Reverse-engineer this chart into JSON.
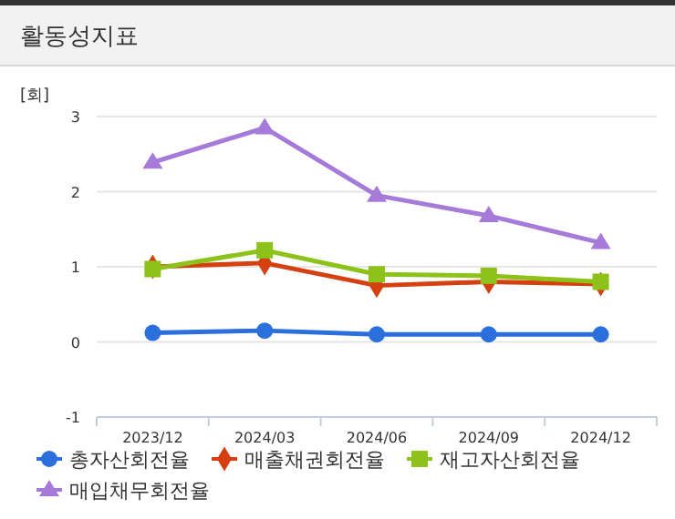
{
  "chart_data": {
    "type": "line",
    "title": "활동성지표",
    "ylabel": "[회]",
    "categories": [
      "2023/12",
      "2024/03",
      "2024/06",
      "2024/09",
      "2024/12"
    ],
    "ylim": [
      -1,
      3
    ],
    "yticks": [
      -1,
      0,
      1,
      2,
      3
    ],
    "grid": "y",
    "legend": "bottom",
    "series": [
      {
        "name": "총자산회전율",
        "color": "#2a6fdb",
        "marker": "circle",
        "values": [
          0.12,
          0.15,
          0.1,
          0.1,
          0.1
        ]
      },
      {
        "name": "매출채권회전율",
        "color": "#d4400f",
        "marker": "diamond",
        "values": [
          1.0,
          1.05,
          0.75,
          0.8,
          0.77
        ]
      },
      {
        "name": "재고자산회전율",
        "color": "#8cc21a",
        "marker": "square",
        "values": [
          0.97,
          1.22,
          0.9,
          0.88,
          0.8
        ]
      },
      {
        "name": "매입채무회전율",
        "color": "#a57ad8",
        "marker": "triangle",
        "values": [
          2.39,
          2.85,
          1.95,
          1.68,
          1.32
        ]
      }
    ]
  }
}
